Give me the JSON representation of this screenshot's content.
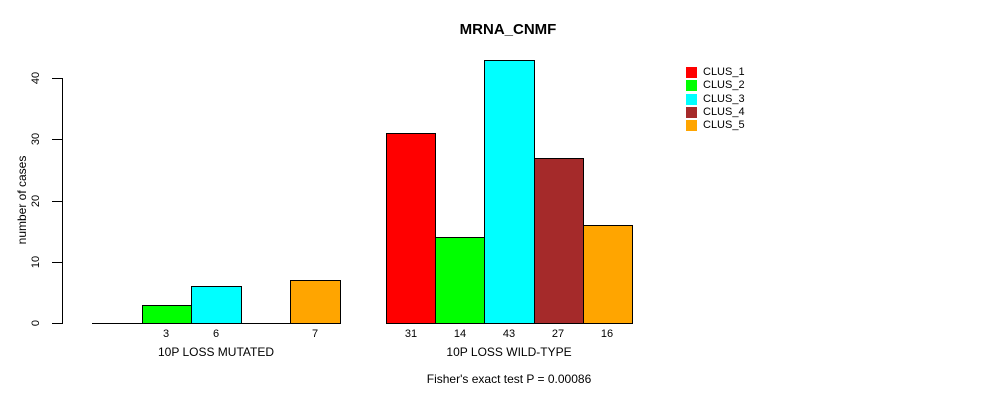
{
  "chart_data": {
    "type": "bar",
    "title": "MRNA_CNMF",
    "ylabel": "number of cases",
    "yticks": [
      0,
      10,
      20,
      30,
      40
    ],
    "ylim": [
      0,
      43
    ],
    "grid": false,
    "legend_position": "top-right",
    "series": [
      {
        "name": "CLUS_1",
        "color": "#ff0000"
      },
      {
        "name": "CLUS_2",
        "color": "#00ff00"
      },
      {
        "name": "CLUS_3",
        "color": "#00ffff"
      },
      {
        "name": "CLUS_4",
        "color": "#a52a2a"
      },
      {
        "name": "CLUS_5",
        "color": "#ffa500"
      }
    ],
    "groups": [
      {
        "label": "10P LOSS MUTATED",
        "values": [
          0,
          3,
          6,
          0,
          7
        ]
      },
      {
        "label": "10P LOSS WILD-TYPE",
        "values": [
          31,
          14,
          43,
          27,
          16
        ]
      }
    ],
    "annotation": "Fisher's exact test P = 0.00086"
  }
}
